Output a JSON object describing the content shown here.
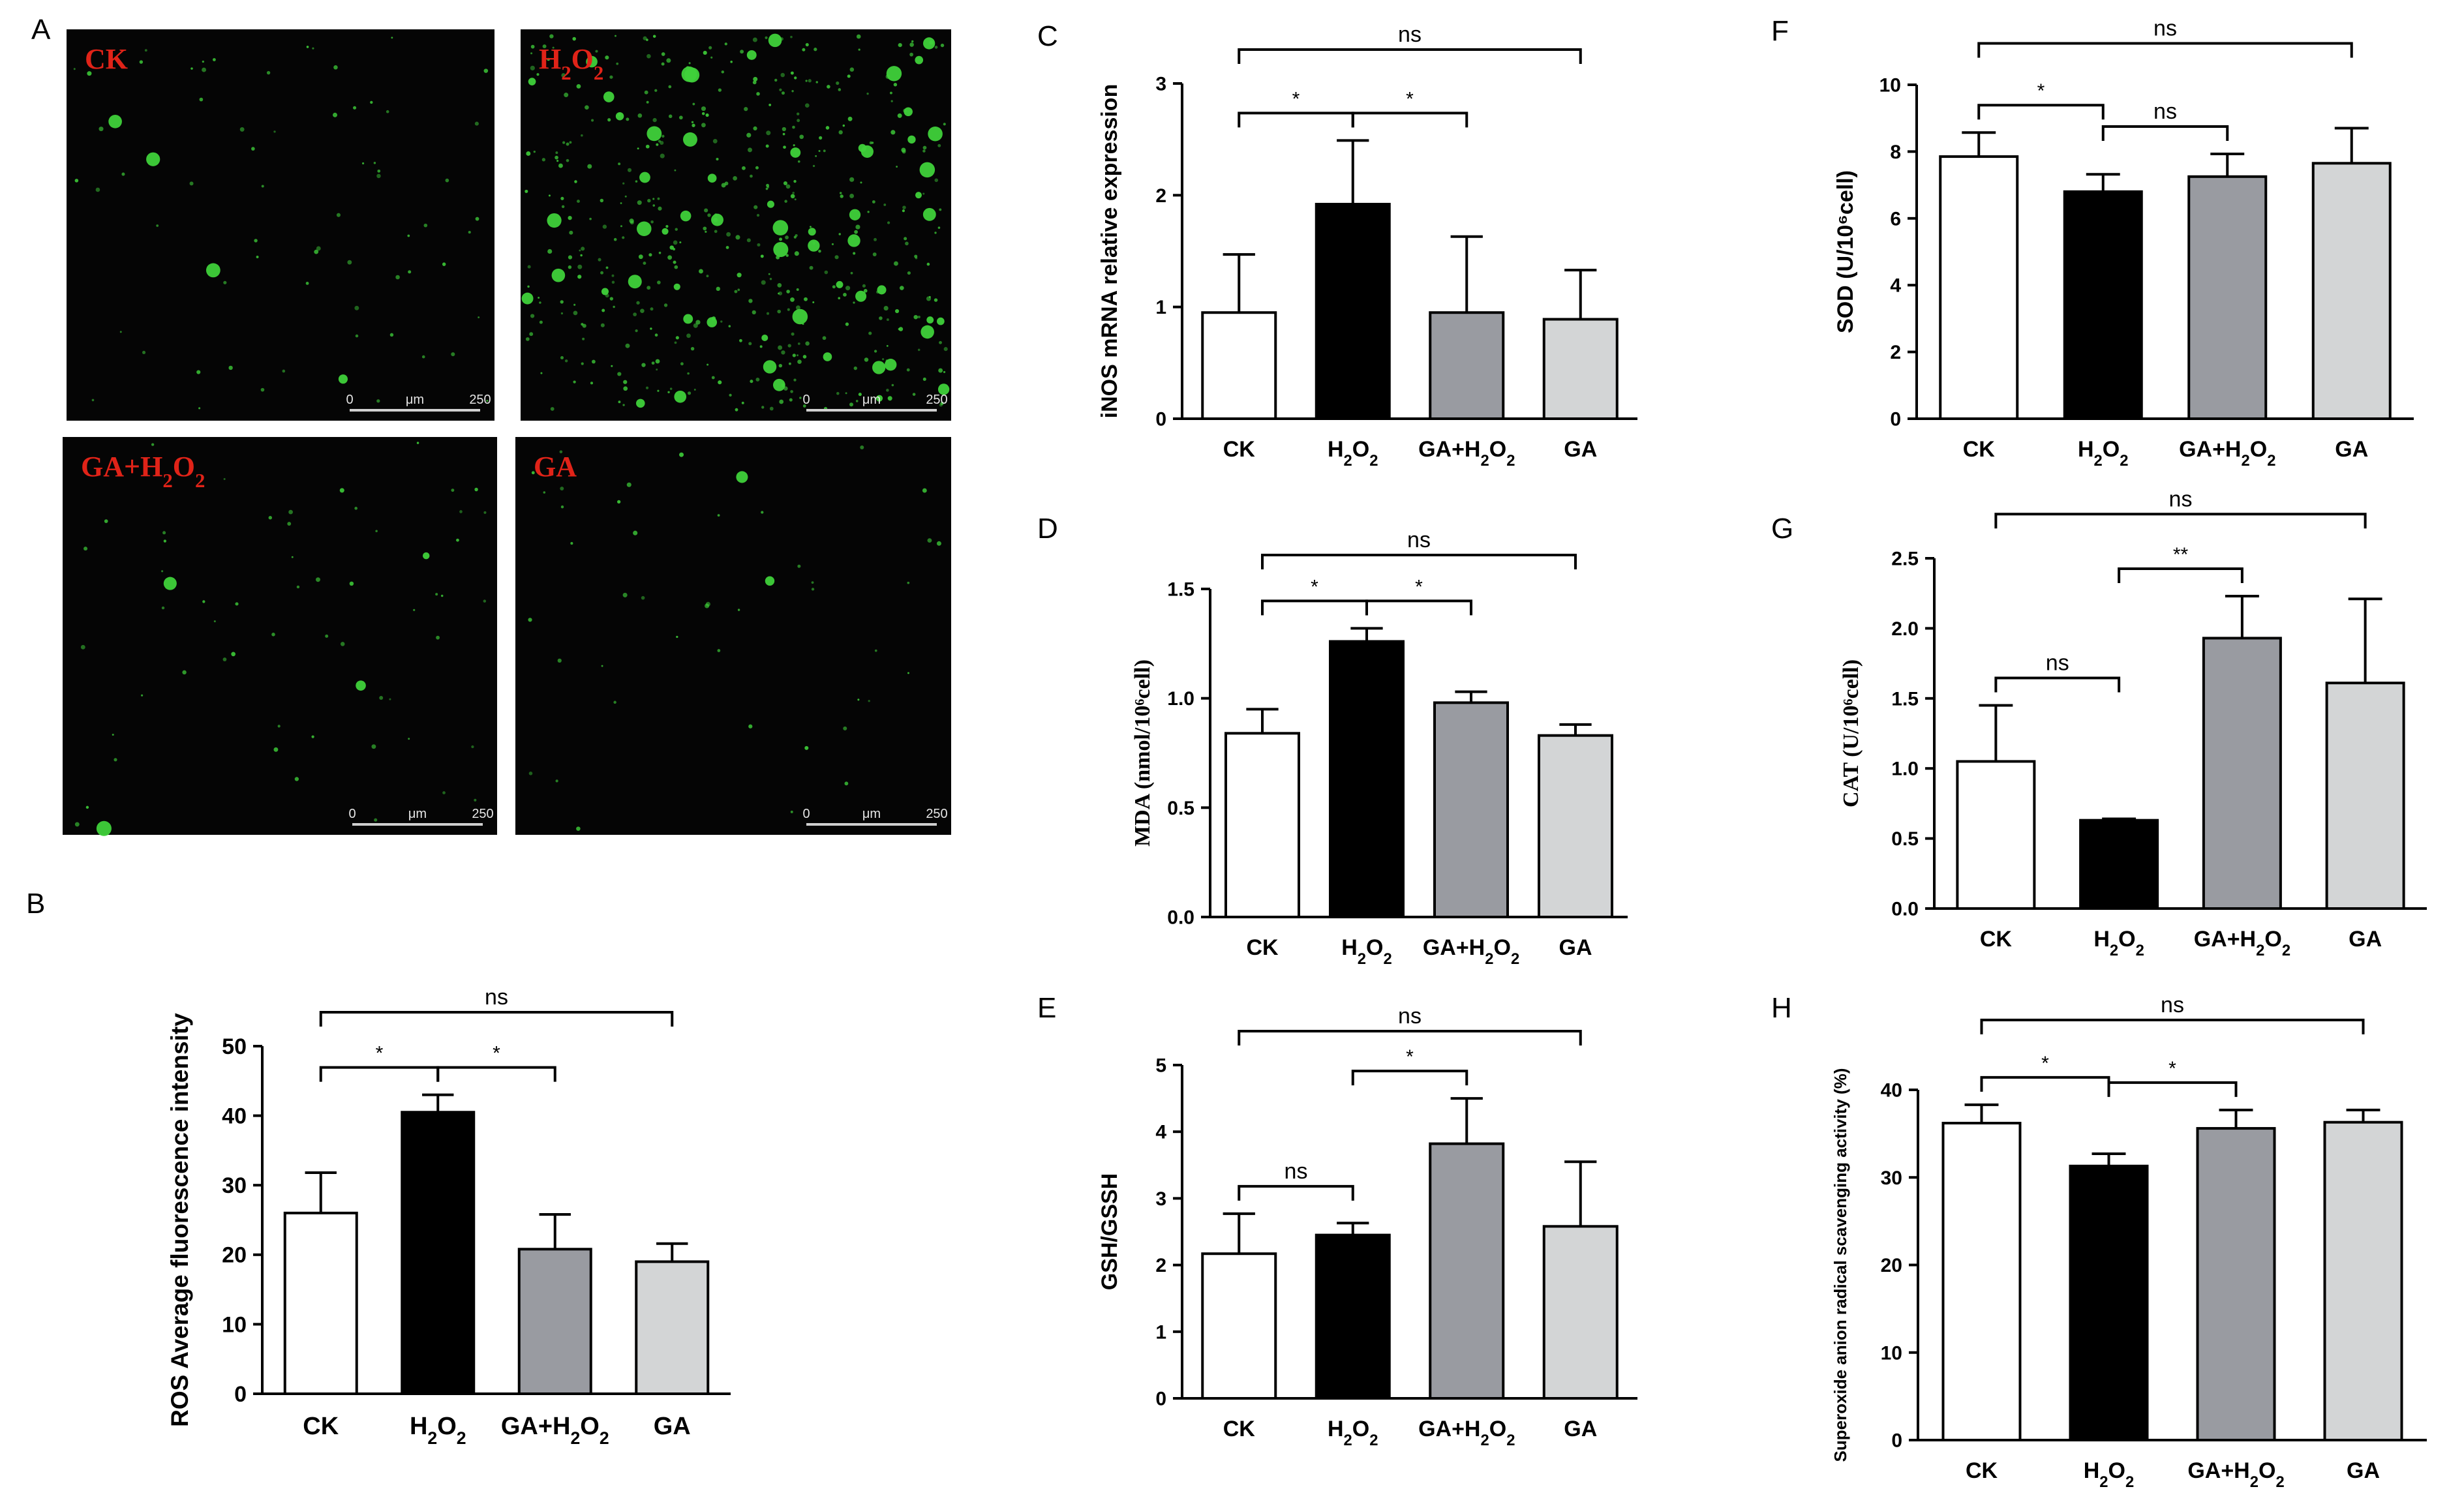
{
  "colors": {
    "CK": "#ffffff",
    "H2O2": "#000000",
    "GA+H2O2": "#999ba1",
    "GA": "#d3d5d6",
    "micrograph_label": "#e02318",
    "fluorescence_dot": "#3fd13a"
  },
  "categories": [
    "CK",
    "H2O2",
    "GA+H2O2",
    "GA"
  ],
  "micrographs": {
    "letter": "A",
    "panels": [
      {
        "label": "CK",
        "scale": {
          "start": "0",
          "unit": "μm",
          "end": "250"
        }
      },
      {
        "label": "H2O2",
        "scale": {
          "start": "0",
          "unit": "μm",
          "end": "250"
        }
      },
      {
        "label": "GA+H2O2",
        "scale": {
          "start": "0",
          "unit": "μm",
          "end": "250"
        }
      },
      {
        "label": "GA",
        "scale": {
          "start": "0",
          "unit": "μm",
          "end": "250"
        }
      }
    ]
  },
  "chart_data": [
    {
      "panel": "B",
      "type": "bar",
      "ylabel": "ROS Average fluorescence intensity",
      "categories": [
        "CK",
        "H2O2",
        "GA+H2O2",
        "GA"
      ],
      "values": [
        26,
        40.5,
        20.8,
        19
      ],
      "errors": [
        5.8,
        2.5,
        5,
        2.6
      ],
      "ylim": [
        0,
        50
      ],
      "yticks": [
        0,
        10,
        20,
        30,
        40,
        50
      ],
      "comparisons": [
        {
          "from": 0,
          "to": 1,
          "label": "*"
        },
        {
          "from": 1,
          "to": 2,
          "label": "*"
        },
        {
          "from": 0,
          "to": 3,
          "label": "ns"
        }
      ]
    },
    {
      "panel": "C",
      "type": "bar",
      "ylabel": "iNOS mRNA relative expression",
      "categories": [
        "CK",
        "H2O2",
        "GA+H2O2",
        "GA"
      ],
      "values": [
        0.95,
        1.92,
        0.95,
        0.89
      ],
      "errors": [
        0.52,
        0.57,
        0.68,
        0.44
      ],
      "ylim": [
        0,
        3
      ],
      "yticks": [
        0,
        1,
        2,
        3
      ],
      "comparisons": [
        {
          "from": 0,
          "to": 1,
          "label": "*"
        },
        {
          "from": 1,
          "to": 2,
          "label": "*"
        },
        {
          "from": 0,
          "to": 3,
          "label": "ns"
        }
      ]
    },
    {
      "panel": "D",
      "type": "bar",
      "ylabel": "MDA (nmol/10⁶cell)",
      "categories": [
        "CK",
        "H2O2",
        "GA+H2O2",
        "GA"
      ],
      "values": [
        0.84,
        1.26,
        0.98,
        0.83
      ],
      "errors": [
        0.11,
        0.06,
        0.05,
        0.05
      ],
      "ylim": [
        0,
        1.5
      ],
      "yticks": [
        "0.0",
        "0.5",
        "1.0",
        "1.5"
      ],
      "comparisons": [
        {
          "from": 0,
          "to": 1,
          "label": "*"
        },
        {
          "from": 1,
          "to": 2,
          "label": "*"
        },
        {
          "from": 0,
          "to": 3,
          "label": "ns"
        }
      ]
    },
    {
      "panel": "E",
      "type": "bar",
      "ylabel": "GSH/GSSH",
      "categories": [
        "CK",
        "H2O2",
        "GA+H2O2",
        "GA"
      ],
      "values": [
        2.17,
        2.45,
        3.82,
        2.58
      ],
      "errors": [
        0.6,
        0.18,
        0.68,
        0.97
      ],
      "ylim": [
        0,
        5
      ],
      "yticks": [
        0,
        1,
        2,
        3,
        4,
        5
      ],
      "comparisons": [
        {
          "from": 0,
          "to": 1,
          "label": "ns"
        },
        {
          "from": 1,
          "to": 2,
          "label": "*"
        },
        {
          "from": 0,
          "to": 3,
          "label": "ns"
        }
      ]
    },
    {
      "panel": "F",
      "type": "bar",
      "ylabel": "SOD (U/10⁶cell)",
      "categories": [
        "CK",
        "H2O2",
        "GA+H2O2",
        "GA"
      ],
      "values": [
        7.85,
        6.8,
        7.25,
        7.65
      ],
      "errors": [
        0.72,
        0.52,
        0.68,
        1.05
      ],
      "ylim": [
        0,
        10
      ],
      "yticks": [
        0,
        2,
        4,
        6,
        8,
        10
      ],
      "comparisons": [
        {
          "from": 0,
          "to": 1,
          "label": "*"
        },
        {
          "from": 1,
          "to": 2,
          "label": "ns"
        },
        {
          "from": 0,
          "to": 3,
          "label": "ns"
        }
      ]
    },
    {
      "panel": "G",
      "type": "bar",
      "ylabel": "CAT (U/10⁶cell)",
      "categories": [
        "CK",
        "H2O2",
        "GA+H2O2",
        "GA"
      ],
      "values": [
        1.05,
        0.63,
        1.93,
        1.61
      ],
      "errors": [
        0.4,
        0.01,
        0.3,
        0.6
      ],
      "ylim": [
        0,
        2.5
      ],
      "yticks": [
        "0.0",
        "0.5",
        "1.0",
        "1.5",
        "2.0",
        "2.5"
      ],
      "comparisons": [
        {
          "from": 0,
          "to": 1,
          "label": "ns"
        },
        {
          "from": 1,
          "to": 2,
          "label": "**"
        },
        {
          "from": 0,
          "to": 3,
          "label": "ns"
        }
      ]
    },
    {
      "panel": "H",
      "type": "bar",
      "ylabel": "Superoxide anion radical scavenging activity (%)",
      "categories": [
        "CK",
        "H2O2",
        "GA+H2O2",
        "GA"
      ],
      "values": [
        36.2,
        31.3,
        35.6,
        36.3
      ],
      "errors": [
        2.1,
        1.4,
        2.1,
        1.4
      ],
      "ylim": [
        0,
        40
      ],
      "yticks": [
        0,
        10,
        20,
        30,
        40
      ],
      "comparisons": [
        {
          "from": 0,
          "to": 1,
          "label": "*"
        },
        {
          "from": 1,
          "to": 2,
          "label": "*"
        },
        {
          "from": 0,
          "to": 3,
          "label": "ns"
        }
      ]
    }
  ]
}
